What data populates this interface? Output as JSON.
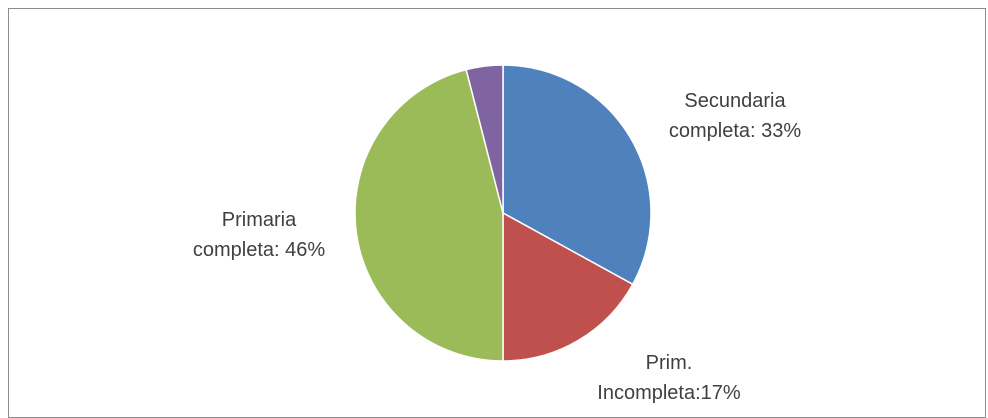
{
  "chart_data": {
    "type": "pie",
    "slices": [
      {
        "label_lines": [
          "Secundaria",
          "completa: 33%"
        ],
        "value": 33,
        "color": "#4f81bd"
      },
      {
        "label_lines": [
          "Prim.",
          "Incompleta:17%"
        ],
        "value": 17,
        "color": "#c0504d"
      },
      {
        "label_lines": [
          "Primaria",
          "completa: 46%"
        ],
        "value": 46,
        "color": "#9bbb59"
      },
      {
        "label_lines": [],
        "value": 4,
        "color": "#8064a2"
      }
    ]
  }
}
